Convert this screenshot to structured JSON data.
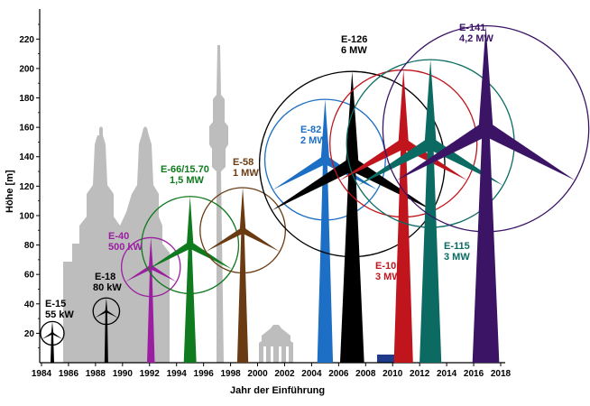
{
  "chart_data": {
    "type": "scatter",
    "xlabel": "Jahr der Einführung",
    "ylabel": "Höhe [m]",
    "xlim": [
      1984,
      2018
    ],
    "ylim": [
      0,
      230
    ],
    "xticks": [
      1984,
      1986,
      1988,
      1990,
      1992,
      1994,
      1996,
      1998,
      2000,
      2002,
      2004,
      2006,
      2008,
      2010,
      2012,
      2014,
      2016,
      2018
    ],
    "yticks": [
      20,
      40,
      60,
      80,
      100,
      120,
      140,
      160,
      180,
      200,
      220
    ],
    "turbines": [
      {
        "name": "E-15",
        "power": "55 kW",
        "year": 1984.8,
        "hub": 20,
        "radius": 8,
        "color": "#000000"
      },
      {
        "name": "E-18",
        "power": "80 kW",
        "year": 1988.8,
        "hub": 35,
        "radius": 9,
        "color": "#000000"
      },
      {
        "name": "E-40",
        "power": "500 kW",
        "year": 1992.1,
        "hub": 65,
        "radius": 20,
        "color": "#9b1ea0"
      },
      {
        "name": "E-66/15.70",
        "power": "1,5 MW",
        "year": 1995.0,
        "hub": 80,
        "radius": 33,
        "color": "#0f7a1e"
      },
      {
        "name": "E-58",
        "power": "1 MW",
        "year": 1998.9,
        "hub": 90,
        "radius": 29,
        "color": "#6a3b12"
      },
      {
        "name": "E-82",
        "power": "2 MW",
        "year": 2005.0,
        "hub": 138,
        "radius": 41,
        "color": "#1c6fc4"
      },
      {
        "name": "E-126",
        "power": "6 MW",
        "year": 2007.0,
        "hub": 135,
        "radius": 63,
        "color": "#000000"
      },
      {
        "name": "E-101",
        "power": "3 MW",
        "year": 2010.8,
        "hub": 149,
        "radius": 50,
        "color": "#c0151d"
      },
      {
        "name": "E-115",
        "power": "3 MW",
        "year": 2012.8,
        "hub": 149,
        "radius": 57,
        "color": "#0b6b63"
      },
      {
        "name": "E-141",
        "power": "4,2 MW",
        "year": 2016.9,
        "hub": 159,
        "radius": 70,
        "color": "#3b1466"
      }
    ],
    "labels": [
      {
        "name": "E-15",
        "power": "55 kW"
      },
      {
        "name": "E-18",
        "power": "80 kW"
      },
      {
        "name": "E-40",
        "power": "500 kW"
      },
      {
        "name": "E-66/15.70",
        "power": "1,5 MW"
      },
      {
        "name": "E-58",
        "power": "1 MW"
      },
      {
        "name": "E-82",
        "power": "2 MW"
      },
      {
        "name": "E-126",
        "power": "6 MW"
      },
      {
        "name": "E-101",
        "power": "3 MW"
      },
      {
        "name": "E-115",
        "power": "3 MW"
      },
      {
        "name": "E-141",
        "power": "4,2 MW"
      }
    ],
    "background_colors": {
      "landmark": "#bdbdbd",
      "van": "#1e3a8a"
    }
  }
}
